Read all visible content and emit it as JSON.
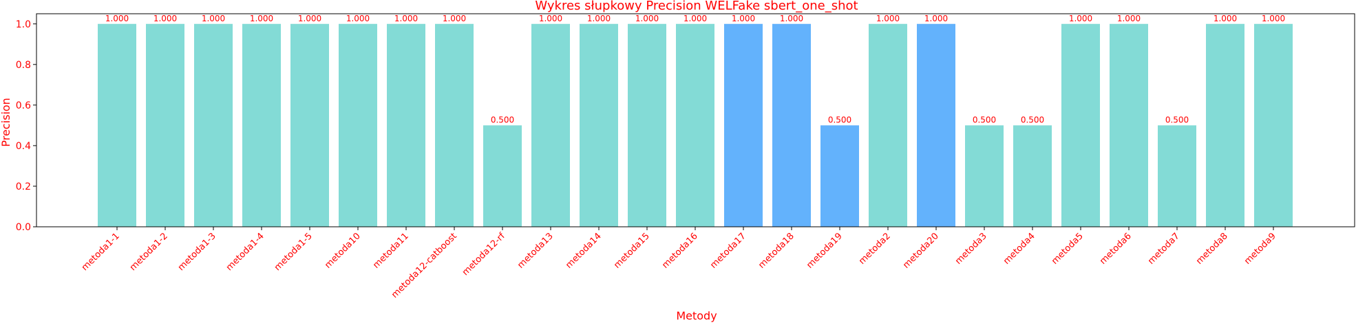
{
  "chart_data": {
    "type": "bar",
    "title": "Wykres słupkowy Precision WELFake sbert_one_shot",
    "xlabel": "Metody",
    "ylabel": "Precision",
    "ylim": [
      0,
      1.05
    ],
    "yticks": [
      "0.0",
      "0.2",
      "0.4",
      "0.6",
      "0.8",
      "1.0"
    ],
    "ytick_values": [
      0,
      0.2,
      0.4,
      0.6,
      0.8,
      1.0
    ],
    "categories": [
      "metoda1-1",
      "metoda1-2",
      "metoda1-3",
      "metoda1-4",
      "metoda1-5",
      "metoda10",
      "metoda11",
      "metoda12-catboost",
      "metoda12-rf",
      "metoda13",
      "metoda14",
      "metoda15",
      "metoda16",
      "metoda17",
      "metoda18",
      "metoda19",
      "metoda2",
      "metoda20",
      "metoda3",
      "metoda4",
      "metoda5",
      "metoda6",
      "metoda7",
      "metoda8",
      "metoda9"
    ],
    "values": [
      1.0,
      1.0,
      1.0,
      1.0,
      1.0,
      1.0,
      1.0,
      1.0,
      0.5,
      1.0,
      1.0,
      1.0,
      1.0,
      1.0,
      1.0,
      0.5,
      1.0,
      1.0,
      0.5,
      0.5,
      1.0,
      1.0,
      0.5,
      1.0,
      1.0
    ],
    "value_labels": [
      "1.000",
      "1.000",
      "1.000",
      "1.000",
      "1.000",
      "1.000",
      "1.000",
      "1.000",
      "0.500",
      "1.000",
      "1.000",
      "1.000",
      "1.000",
      "1.000",
      "1.000",
      "0.500",
      "1.000",
      "1.000",
      "0.500",
      "0.500",
      "1.000",
      "1.000",
      "0.500",
      "1.000",
      "1.000"
    ],
    "highlighted": [
      false,
      false,
      false,
      false,
      false,
      false,
      false,
      false,
      false,
      false,
      false,
      false,
      false,
      true,
      true,
      true,
      false,
      true,
      false,
      false,
      false,
      false,
      false,
      false,
      false
    ],
    "colors": {
      "bar": "#83dbd6",
      "highlight": "#63b2fc",
      "text": "#ff0000",
      "axis": "#000000"
    },
    "grid": false,
    "legend": "none"
  }
}
